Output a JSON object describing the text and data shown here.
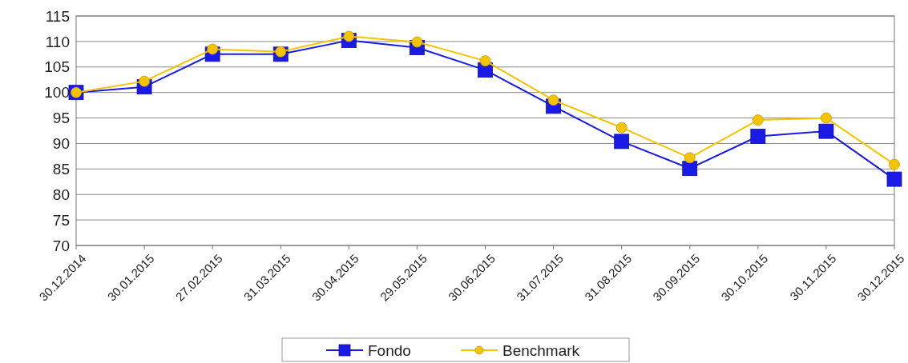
{
  "chart_data": {
    "type": "line",
    "categories": [
      "30.12.2014",
      "30.01.2015",
      "27.02.2015",
      "31.03.2015",
      "30.04.2015",
      "29.05.2015",
      "30.06.2015",
      "31.07.2015",
      "31.08.2015",
      "30.09.2015",
      "30.10.2015",
      "30.11.2015",
      "30.12.2015"
    ],
    "series": [
      {
        "name": "Fondo",
        "color": "#1a1ae6",
        "marker": "square",
        "values": [
          100,
          101.1,
          107.5,
          107.5,
          110.2,
          108.8,
          104.4,
          97.3,
          90.4,
          85.1,
          91.4,
          92.4,
          83.0
        ]
      },
      {
        "name": "Benchmark",
        "color": "#f5c400",
        "marker": "circle",
        "values": [
          100,
          102.2,
          108.5,
          108.0,
          111.0,
          109.9,
          106.2,
          98.5,
          93.1,
          87.2,
          94.6,
          95.0,
          85.9
        ]
      }
    ],
    "ylim": [
      70,
      115
    ],
    "yticks": [
      70,
      75,
      80,
      85,
      90,
      95,
      100,
      105,
      110,
      115
    ],
    "grid": "y",
    "legend": "bottom"
  }
}
